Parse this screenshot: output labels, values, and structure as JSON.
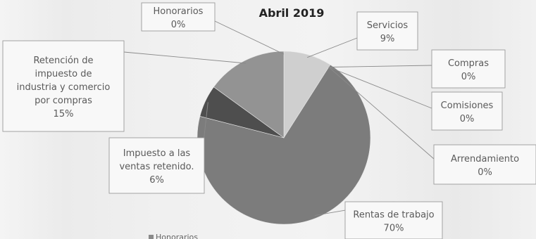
{
  "chart_data": {
    "type": "pie",
    "title": "Abril 2019",
    "slices": [
      {
        "label": "Honorarios",
        "percent_label": "0%",
        "value": 0,
        "color": "#9c9c9c"
      },
      {
        "label": "Servicios",
        "percent_label": "9%",
        "value": 9,
        "color": "#cfcfcf"
      },
      {
        "label": "Compras",
        "percent_label": "0%",
        "value": 0,
        "color": "#bdbdbd"
      },
      {
        "label": "Comisiones",
        "percent_label": "0%",
        "value": 0,
        "color": "#b5b5b5"
      },
      {
        "label": "Arrendamiento",
        "percent_label": "0%",
        "value": 0,
        "color": "#adadad"
      },
      {
        "label": "Rentas de trabajo",
        "percent_label": "70%",
        "value": 70,
        "color": "#7c7c7c"
      },
      {
        "label": "Impuesto a las ventas retenido.",
        "percent_label": "6%",
        "value": 6,
        "color": "#4e4e4e"
      },
      {
        "label": "Retención de impuesto de industria y comercio por compras",
        "percent_label": "15%",
        "value": 15,
        "color": "#939393"
      }
    ],
    "legend": [
      "Honorarios"
    ],
    "legend_color": "#8a8a8a"
  }
}
